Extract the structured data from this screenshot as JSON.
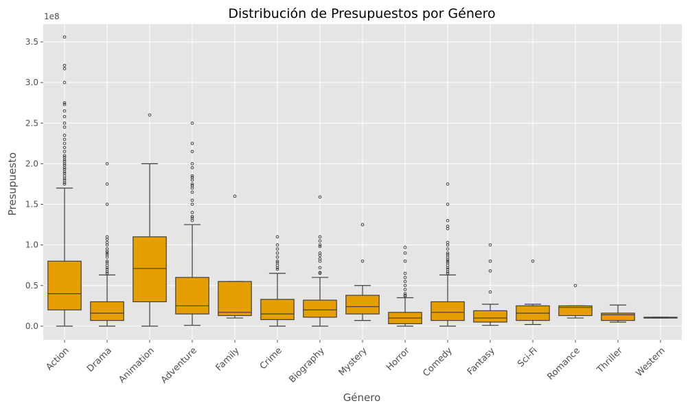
{
  "chart_data": {
    "type": "box",
    "title": "Distribución de Presupuestos por Género",
    "xlabel": "Género",
    "ylabel": "Presupuesto",
    "y_offset_label": "1e8",
    "ylim": [
      -0.17,
      3.72
    ],
    "yticks": [
      0.0,
      0.5,
      1.0,
      1.5,
      2.0,
      2.5,
      3.0,
      3.5
    ],
    "ytick_labels": [
      "0.0",
      "0.5",
      "1.0",
      "1.5",
      "2.0",
      "2.5",
      "3.0",
      "3.5"
    ],
    "grid": true,
    "box_color": "#E69F00",
    "background_color": "#E5E5E5",
    "categories": [
      "Action",
      "Drama",
      "Animation",
      "Adventure",
      "Family",
      "Crime",
      "Biography",
      "Mystery",
      "Horror",
      "Comedy",
      "Fantasy",
      "Sci-Fi",
      "Romance",
      "Thriller",
      "Western"
    ],
    "boxes": [
      {
        "whislo": 0.0,
        "q1": 0.2,
        "med": 0.4,
        "q3": 0.8,
        "whishi": 1.7,
        "fliers": [
          1.75,
          1.77,
          1.8,
          1.82,
          1.85,
          1.88,
          1.9,
          1.93,
          1.95,
          1.98,
          2.0,
          2.03,
          2.05,
          2.08,
          2.1,
          2.15,
          2.2,
          2.25,
          2.3,
          2.35,
          2.45,
          2.5,
          2.58,
          2.65,
          2.73,
          2.75,
          3.0,
          3.17,
          3.21,
          3.56
        ]
      },
      {
        "whislo": 0.0,
        "q1": 0.07,
        "med": 0.16,
        "q3": 0.3,
        "whishi": 0.63,
        "fliers": [
          0.65,
          0.67,
          0.7,
          0.72,
          0.75,
          0.78,
          0.8,
          0.85,
          0.88,
          0.9,
          0.92,
          0.95,
          1.0,
          1.03,
          1.07,
          1.1,
          1.5,
          1.75,
          2.0
        ]
      },
      {
        "whislo": 0.0,
        "q1": 0.3,
        "med": 0.71,
        "q3": 1.1,
        "whishi": 2.0,
        "fliers": [
          2.6
        ]
      },
      {
        "whislo": 0.01,
        "q1": 0.15,
        "med": 0.25,
        "q3": 0.6,
        "whishi": 1.25,
        "fliers": [
          1.3,
          1.33,
          1.35,
          1.4,
          1.5,
          1.55,
          1.65,
          1.7,
          1.73,
          1.75,
          1.8,
          1.83,
          1.85,
          1.95,
          2.0,
          2.15,
          2.25,
          2.5
        ]
      },
      {
        "whislo": 0.1,
        "q1": 0.13,
        "med": 0.17,
        "q3": 0.55,
        "whishi": 0.55,
        "fliers": [
          1.6
        ]
      },
      {
        "whislo": 0.0,
        "q1": 0.08,
        "med": 0.15,
        "q3": 0.33,
        "whishi": 0.65,
        "fliers": [
          0.7,
          0.72,
          0.75,
          0.78,
          0.8,
          0.85,
          0.9,
          0.95,
          1.0,
          1.1
        ]
      },
      {
        "whislo": 0.0,
        "q1": 0.11,
        "med": 0.2,
        "q3": 0.32,
        "whishi": 0.6,
        "fliers": [
          0.65,
          0.66,
          0.72,
          0.8,
          0.83,
          0.87,
          0.9,
          0.98,
          1.0,
          1.05,
          1.1,
          1.59
        ]
      },
      {
        "whislo": 0.07,
        "q1": 0.15,
        "med": 0.24,
        "q3": 0.38,
        "whishi": 0.5,
        "fliers": [
          0.8,
          1.25
        ]
      },
      {
        "whislo": 0.0,
        "q1": 0.03,
        "med": 0.1,
        "q3": 0.17,
        "whishi": 0.35,
        "fliers": [
          0.37,
          0.38,
          0.4,
          0.45,
          0.5,
          0.55,
          0.6,
          0.65,
          0.8,
          0.9,
          0.97
        ]
      },
      {
        "whislo": 0.0,
        "q1": 0.07,
        "med": 0.17,
        "q3": 0.3,
        "whishi": 0.63,
        "fliers": [
          0.65,
          0.67,
          0.7,
          0.72,
          0.75,
          0.78,
          0.8,
          0.82,
          0.85,
          0.88,
          0.9,
          0.95,
          1.0,
          1.03,
          1.2,
          1.23,
          1.3,
          1.5,
          1.75
        ]
      },
      {
        "whislo": 0.01,
        "q1": 0.05,
        "med": 0.1,
        "q3": 0.19,
        "whishi": 0.27,
        "fliers": [
          0.42,
          0.68,
          0.8,
          1.0
        ]
      },
      {
        "whislo": 0.02,
        "q1": 0.07,
        "med": 0.16,
        "q3": 0.25,
        "whishi": 0.27,
        "fliers": [
          0.8
        ]
      },
      {
        "whislo": 0.1,
        "q1": 0.13,
        "med": 0.23,
        "q3": 0.25,
        "whishi": 0.25,
        "fliers": [
          0.5
        ]
      },
      {
        "whislo": 0.05,
        "q1": 0.07,
        "med": 0.14,
        "q3": 0.16,
        "whishi": 0.26,
        "fliers": []
      },
      {
        "whislo": 0.1,
        "q1": 0.1,
        "med": 0.1,
        "q3": 0.11,
        "whishi": 0.11,
        "fliers": []
      }
    ]
  }
}
